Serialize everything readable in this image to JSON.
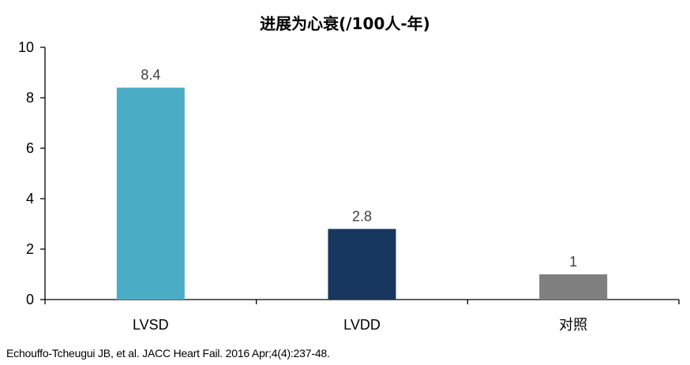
{
  "chart_data": {
    "type": "bar",
    "title": "进展为心衰(/100人-年)",
    "categories": [
      "LVSD",
      "LVDD",
      "对照"
    ],
    "values": [
      8.4,
      2.8,
      1
    ],
    "data_labels": [
      "8.4",
      "2.8",
      "1"
    ],
    "colors": [
      "#4BACC6",
      "#17375E",
      "#7F7F7F"
    ],
    "ylim": [
      0,
      10
    ],
    "yticks": [
      "0",
      "2",
      "4",
      "6",
      "8",
      "10"
    ],
    "grid": false,
    "xlabel": "",
    "ylabel": ""
  },
  "citation": "Echouffo-Tcheugui JB, et al. JACC Heart Fail. 2016 Apr;4(4):237-48."
}
